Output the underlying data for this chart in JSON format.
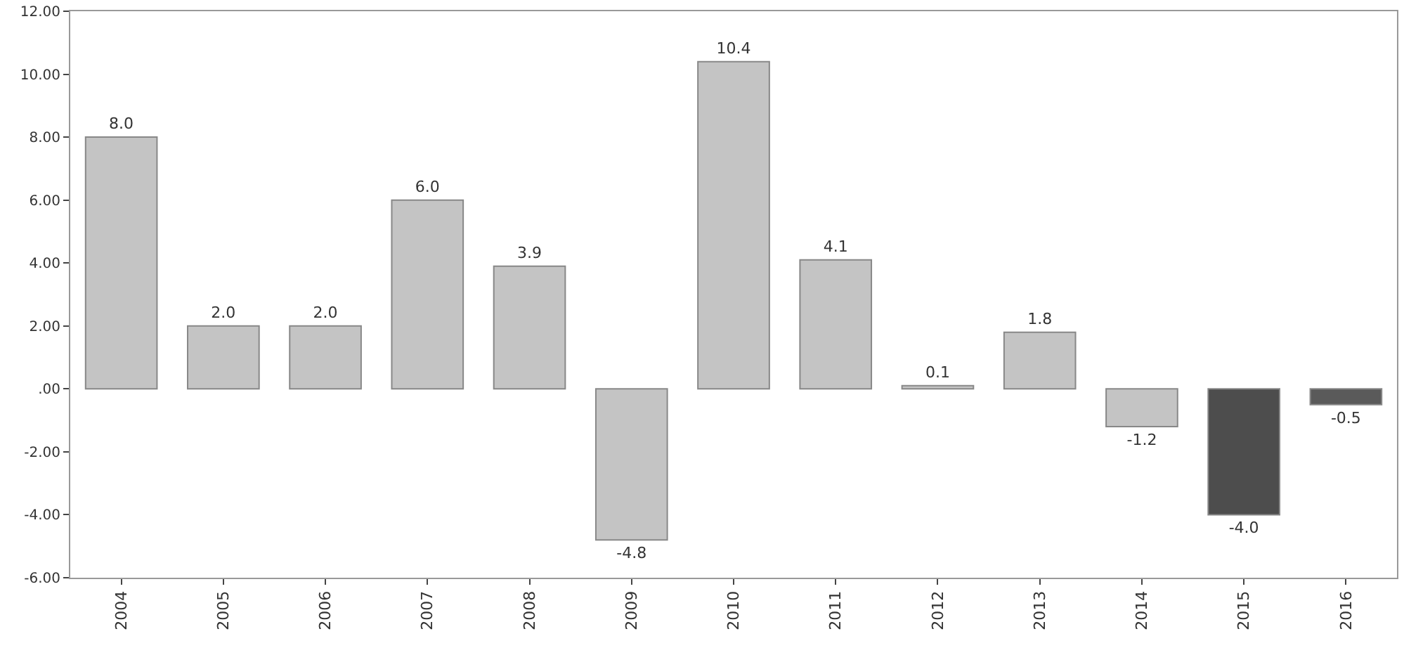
{
  "chart_data": {
    "type": "bar",
    "categories": [
      "2004",
      "2005",
      "2006",
      "2007",
      "2008",
      "2009",
      "2010",
      "2011",
      "2012",
      "2013",
      "2014",
      "2015",
      "2016"
    ],
    "values": [
      8.0,
      2.0,
      2.0,
      6.0,
      3.9,
      -4.8,
      10.4,
      4.1,
      0.1,
      1.8,
      -1.2,
      -4.0,
      -0.5
    ],
    "value_labels": [
      "8.0",
      "2.0",
      "2.0",
      "6.0",
      "3.9",
      "-4.8",
      "10.4",
      "4.1",
      "0.1",
      "1.8",
      "-1.2",
      "-4.0",
      "-0.5"
    ],
    "colors": [
      "#c4c4c4",
      "#c4c4c4",
      "#c4c4c4",
      "#c4c4c4",
      "#c4c4c4",
      "#c4c4c4",
      "#c4c4c4",
      "#c4c4c4",
      "#c4c4c4",
      "#c4c4c4",
      "#c4c4c4",
      "#4d4d4d",
      "#5a5a5a"
    ],
    "ylim": [
      -6,
      12
    ],
    "yticks": [
      {
        "value": -6,
        "label": "-6.00"
      },
      {
        "value": -4,
        "label": "-4.00"
      },
      {
        "value": -2,
        "label": "-2.00"
      },
      {
        "value": 0,
        "label": ".00"
      },
      {
        "value": 2,
        "label": "2.00"
      },
      {
        "value": 4,
        "label": "4.00"
      },
      {
        "value": 6,
        "label": "6.00"
      },
      {
        "value": 8,
        "label": "8.00"
      },
      {
        "value": 10,
        "label": "10.00"
      },
      {
        "value": 12,
        "label": "12.00"
      }
    ],
    "grid": false
  }
}
